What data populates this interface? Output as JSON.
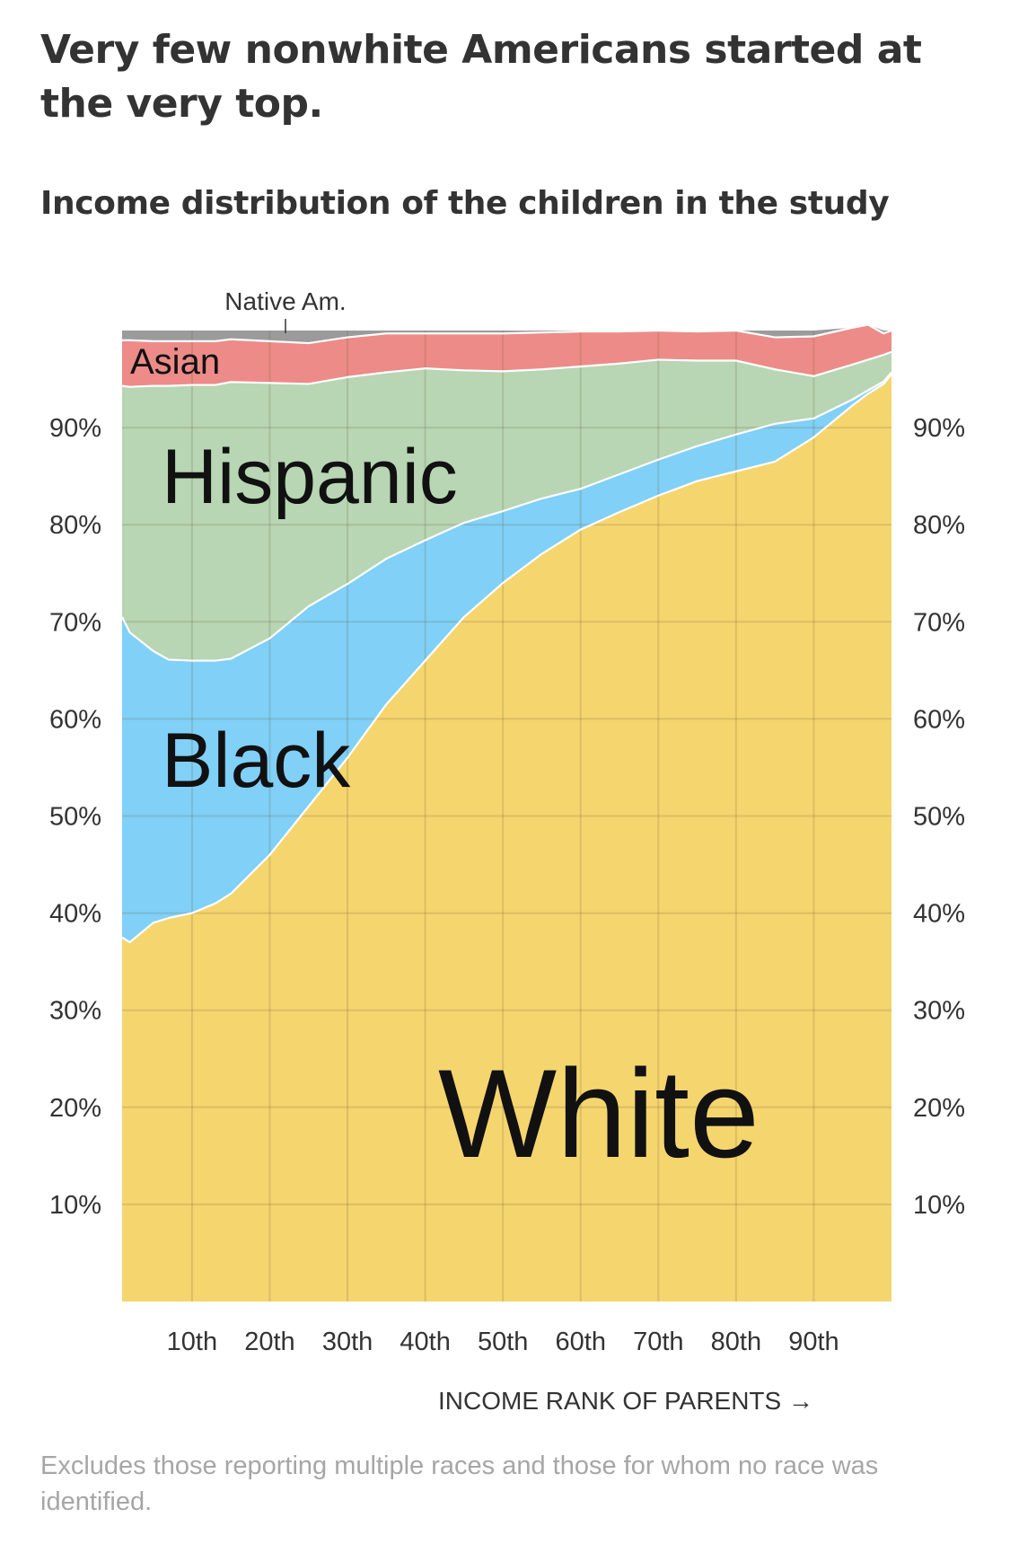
{
  "headline": "Very few nonwhite Americans started at the very top.",
  "subhead": "Income distribution of the children in the study",
  "footnote": "Excludes those reporting multiple races and those for whom no race was identified.",
  "colors": {
    "white": "#f5d56e",
    "black": "#80d0f7",
    "hispanic": "#b8d5b4",
    "asian": "#ed8b88",
    "native_am": "#9b9b9b",
    "grid": "#c9b98a"
  },
  "chart_data": {
    "type": "area",
    "stacked": true,
    "x_label": "INCOME RANK OF PARENTS →",
    "x": [
      1,
      2,
      5,
      7,
      10,
      13,
      15,
      20,
      25,
      30,
      35,
      40,
      45,
      50,
      55,
      60,
      65,
      70,
      75,
      80,
      85,
      90,
      95,
      97,
      99,
      100
    ],
    "x_ticks": [
      10,
      20,
      30,
      40,
      50,
      60,
      70,
      80,
      90
    ],
    "x_tick_labels": [
      "10th",
      "20th",
      "30th",
      "40th",
      "50th",
      "60th",
      "70th",
      "80th",
      "90th"
    ],
    "xlim": [
      1,
      100
    ],
    "y_ticks": [
      10,
      20,
      30,
      40,
      50,
      60,
      70,
      80,
      90
    ],
    "y_tick_labels": [
      "10%",
      "20%",
      "30%",
      "40%",
      "50%",
      "60%",
      "70%",
      "80%",
      "90%"
    ],
    "ylim": [
      0,
      100
    ],
    "grid": true,
    "series": [
      {
        "name": "White",
        "key": "white",
        "values": [
          37.5,
          37,
          39,
          39.5,
          40,
          41,
          42,
          46,
          51,
          56,
          61.5,
          66,
          70.5,
          74,
          77,
          79.5,
          81.3,
          83,
          84.5,
          85.5,
          86.5,
          89,
          92.3,
          93.5,
          94.5,
          95.5
        ]
      },
      {
        "name": "Black",
        "key": "black",
        "values": [
          33,
          31.9,
          28,
          26.6,
          26,
          25,
          24.2,
          22.3,
          20.6,
          17.9,
          15,
          12.4,
          9.7,
          7.4,
          5.7,
          4.2,
          3.9,
          3.7,
          3.6,
          3.8,
          3.9,
          1.95,
          0.6,
          0.35,
          0.25,
          0.2
        ]
      },
      {
        "name": "Hispanic",
        "key": "hispanic",
        "values": [
          23.8,
          25.3,
          27.3,
          28.2,
          28.4,
          28.4,
          28.5,
          26.3,
          22.9,
          21.3,
          19.2,
          17.7,
          15.7,
          14.4,
          13.3,
          12.6,
          11.4,
          10.3,
          8.8,
          7.6,
          5.6,
          4.35,
          3.6,
          3.15,
          2.75,
          2.1
        ]
      },
      {
        "name": "Asian",
        "key": "asian",
        "values": [
          4.7,
          4.8,
          4.6,
          4.6,
          4.5,
          4.5,
          4.4,
          4.3,
          4.2,
          4.1,
          4,
          3.6,
          3.8,
          3.9,
          3.8,
          3.6,
          3.3,
          3,
          3,
          3.1,
          3.3,
          4.1,
          3.8,
          3.6,
          2.2,
          2.2
        ]
      },
      {
        "name": "Native Am.",
        "key": "native_am",
        "values": [
          1.0,
          1.0,
          1.1,
          1.1,
          1.1,
          1.1,
          0.9,
          1.1,
          1.3,
          0.7,
          0.3,
          0.3,
          0.3,
          0.3,
          0.2,
          0.1,
          0.1,
          0,
          0.1,
          0,
          0.7,
          0.6,
          0,
          0,
          0.3,
          0
        ]
      }
    ],
    "area_labels": [
      "Native Am.",
      "Asian",
      "Hispanic",
      "Black",
      "White"
    ]
  }
}
